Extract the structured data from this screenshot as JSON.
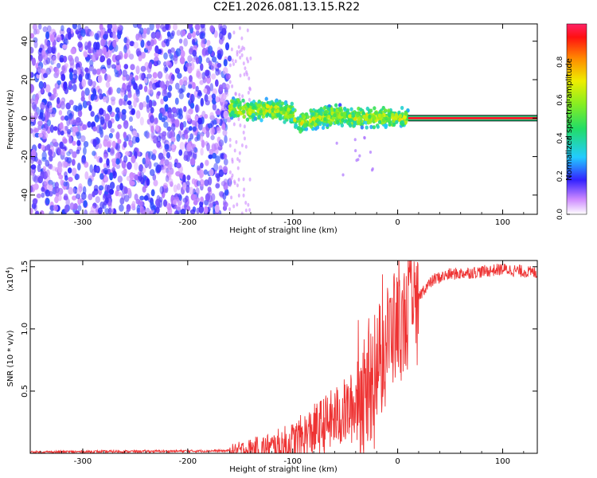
{
  "title": "C2E1.2026.081.13.15.R22",
  "chart_data": [
    {
      "type": "heatmap",
      "name": "spectrogram",
      "xlabel": "Height of straight line (km)",
      "ylabel": "Frequency (Hz)",
      "xlim": [
        -350,
        133
      ],
      "ylim": [
        -50,
        49
      ],
      "x_ticks": [
        -300,
        -200,
        -100,
        0,
        100
      ],
      "y_ticks": [
        -40,
        -20,
        0,
        20,
        40
      ],
      "colorbar": {
        "label": "Normalized spectral amplitude",
        "range": [
          0,
          1
        ],
        "ticks": [
          "0.0",
          "0.2",
          "0.4",
          "0.6",
          "0.8"
        ]
      },
      "regions": [
        {
          "name": "noise",
          "x_range": [
            -350,
            -160
          ],
          "freq_range": [
            -50,
            49
          ],
          "amplitude": 0.12
        },
        {
          "name": "transition-scatter",
          "x_range": [
            -160,
            -140
          ],
          "freq_range": [
            -50,
            49
          ],
          "amplitude": 0.08
        },
        {
          "name": "signal-onset",
          "x_range": [
            -160,
            10
          ],
          "freq_range": [
            -8,
            9
          ],
          "amplitude": 0.4
        },
        {
          "name": "steady-carrier",
          "x_range": [
            10,
            133
          ],
          "freq": 0,
          "amplitude": 1.0
        }
      ],
      "signal_trace": [
        {
          "x": -160,
          "freq": 5
        },
        {
          "x": -140,
          "freq": 4
        },
        {
          "x": -120,
          "freq": 5
        },
        {
          "x": -100,
          "freq": 2
        },
        {
          "x": -95,
          "freq": -3
        },
        {
          "x": -85,
          "freq": -1
        },
        {
          "x": -75,
          "freq": 0
        },
        {
          "x": -60,
          "freq": 2
        },
        {
          "x": -45,
          "freq": 0
        },
        {
          "x": -30,
          "freq": 1
        },
        {
          "x": -15,
          "freq": 0
        },
        {
          "x": 0,
          "freq": 0
        },
        {
          "x": 10,
          "freq": 0
        }
      ]
    },
    {
      "type": "line",
      "name": "snr",
      "xlabel": "Height of straight line (km)",
      "ylabel": "SNR (10 * v/v)",
      "scale_label": "(x10",
      "scale_exp": "4",
      "xlim": [
        -350,
        133
      ],
      "ylim": [
        0,
        1.55
      ],
      "x_ticks": [
        -300,
        -200,
        -100,
        0,
        100
      ],
      "y_ticks": [
        "0.5",
        "1.0",
        "1.5"
      ],
      "color": "#ee3333",
      "profile": [
        {
          "x": -350,
          "y": 0.01
        },
        {
          "x": -160,
          "y": 0.02
        },
        {
          "x": -120,
          "y": 0.04
        },
        {
          "x": -100,
          "y": 0.08
        },
        {
          "x": -80,
          "y": 0.18
        },
        {
          "x": -60,
          "y": 0.28
        },
        {
          "x": -40,
          "y": 0.38
        },
        {
          "x": -25,
          "y": 0.55
        },
        {
          "x": -15,
          "y": 0.85
        },
        {
          "x": -5,
          "y": 0.98
        },
        {
          "x": 5,
          "y": 1.05
        },
        {
          "x": 15,
          "y": 1.18
        },
        {
          "x": 25,
          "y": 1.32
        },
        {
          "x": 35,
          "y": 1.4
        },
        {
          "x": 50,
          "y": 1.44
        },
        {
          "x": 80,
          "y": 1.46
        },
        {
          "x": 100,
          "y": 1.48
        },
        {
          "x": 133,
          "y": 1.45
        }
      ]
    }
  ]
}
